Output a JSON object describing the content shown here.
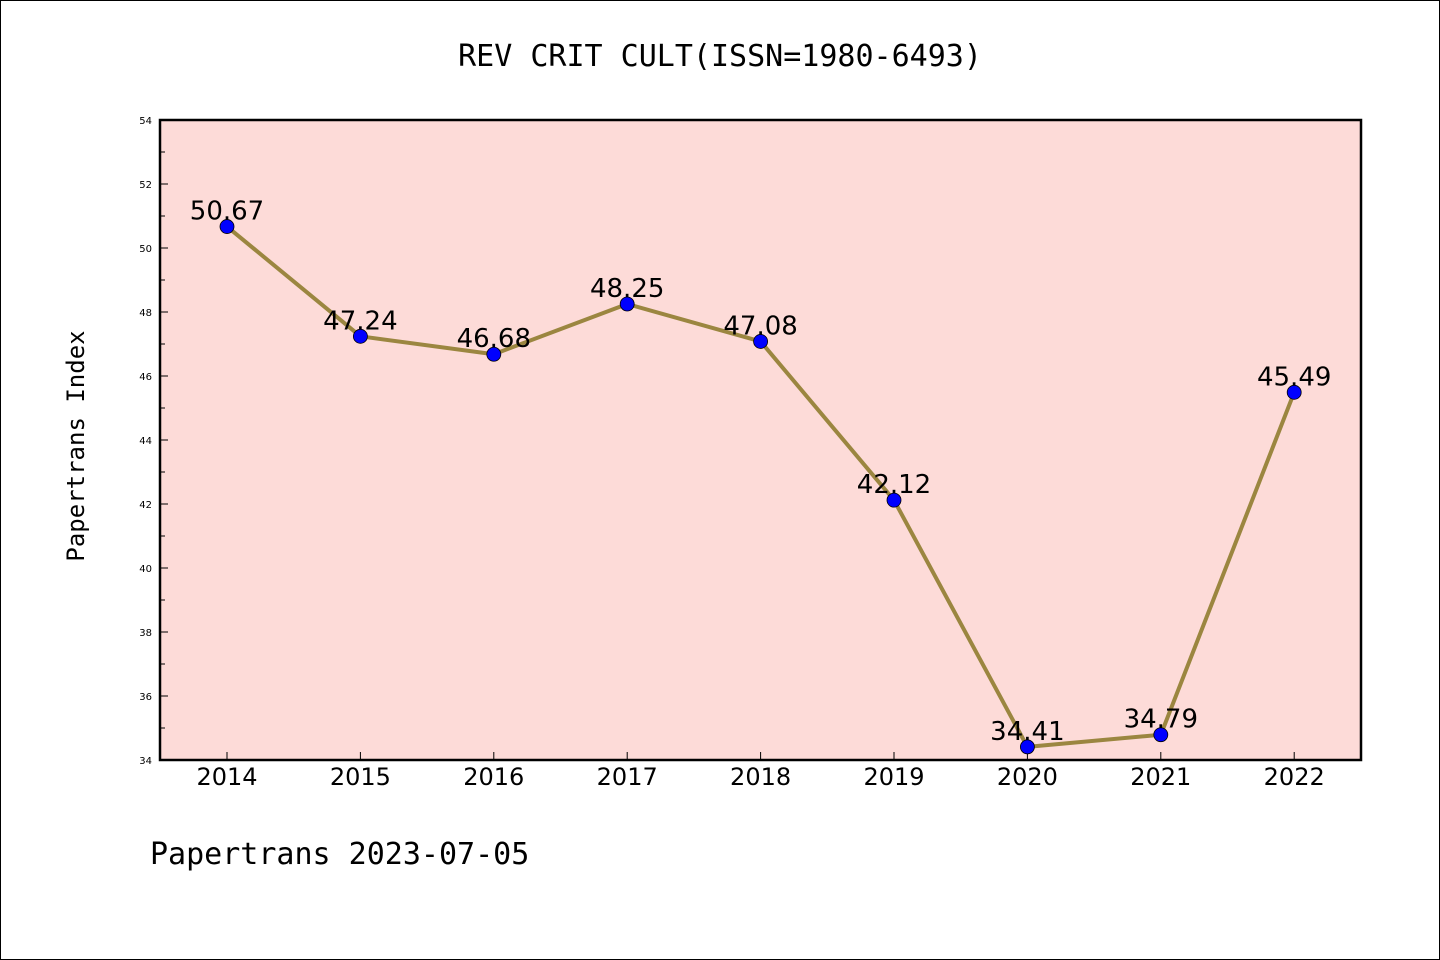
{
  "chart_data": {
    "type": "line",
    "title": "REV CRIT CULT(ISSN=1980-6493)",
    "xlabel": "",
    "ylabel": "Papertrans Index",
    "footer": "Papertrans 2023-07-05",
    "categories": [
      "2014",
      "2015",
      "2016",
      "2017",
      "2018",
      "2019",
      "2020",
      "2021",
      "2022"
    ],
    "values": [
      50.67,
      47.24,
      46.68,
      48.25,
      47.08,
      42.12,
      34.41,
      34.79,
      45.49
    ],
    "data_labels": [
      "50.67",
      "47.24",
      "46.68",
      "48.25",
      "47.08",
      "42.12",
      "34.41",
      "34.79",
      "45.49"
    ],
    "ylim": [
      34,
      54
    ],
    "yticks": [
      "34",
      "36",
      "38",
      "40",
      "42",
      "44",
      "46",
      "48",
      "50",
      "52",
      "54"
    ],
    "grid": false,
    "colors": {
      "plot_background": "#fddbd8",
      "line": "#9b8640",
      "marker": "#0000ff"
    }
  }
}
